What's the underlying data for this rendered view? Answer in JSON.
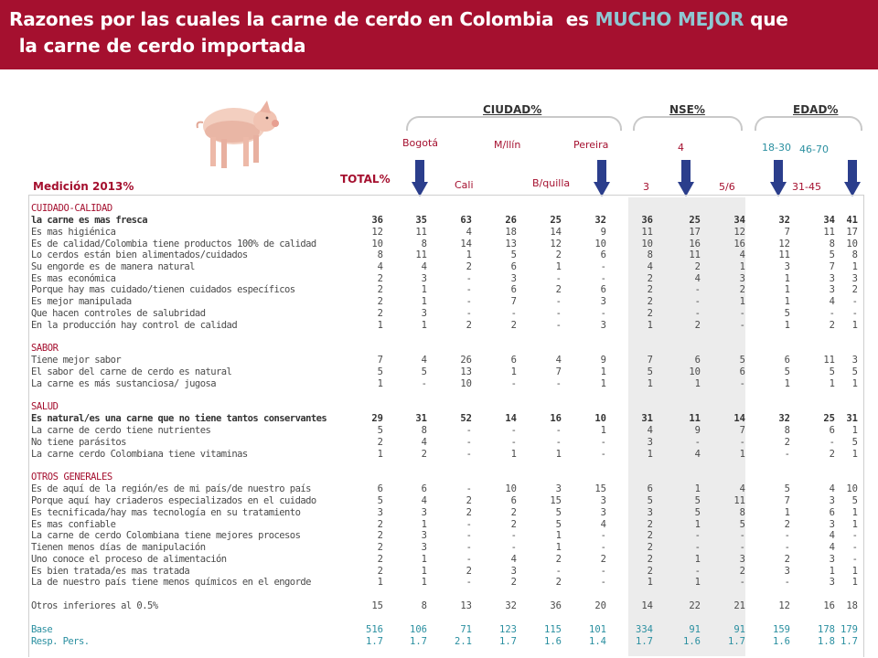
{
  "title": {
    "line1_a": "Razones por las cuales la carne de cerdo en Colombia  es ",
    "line1_hl": "MUCHO MEJOR",
    "line1_b": " que",
    "line2": " la carne de cerdo importada"
  },
  "labels": {
    "medicion": "Medición 2013%",
    "total": "TOTAL%"
  },
  "groups": {
    "ciudad": "CIUDAD%",
    "nse": "NSE%",
    "edad": "EDAD%"
  },
  "subheads": {
    "bogota": "Bogotá",
    "cali": "Cali",
    "medellin": "M/llín",
    "barranquilla": "B/quilla",
    "pereira": "Pereira",
    "nse3": "3",
    "nse4": "4",
    "nse56": "5/6",
    "e1830": "18-30",
    "e3145": "31-45",
    "e4670": "46-70"
  },
  "colors": {
    "brand": "#a5102f",
    "highlight": "#8ec8d3",
    "base_text": "#2a8fa0",
    "nse_shade": "#ececec"
  },
  "icons": {
    "image": "pig-image",
    "arrow": "arrow-down-icon"
  },
  "table": {
    "rows": [
      {
        "label": "CUIDADO-CALIDAD",
        "type": "section",
        "values": []
      },
      {
        "label": "la carne es mas fresca",
        "type": "bold",
        "values": [
          "36",
          "35",
          "63",
          "26",
          "25",
          "32",
          "36",
          "25",
          "34",
          "32",
          "34",
          "41"
        ]
      },
      {
        "label": "Es mas higiénica",
        "type": "item",
        "values": [
          "12",
          "11",
          "4",
          "18",
          "14",
          "9",
          "11",
          "17",
          "12",
          "7",
          "11",
          "17"
        ]
      },
      {
        "label": "Es de calidad/Colombia tiene productos 100% de calidad",
        "type": "item",
        "values": [
          "10",
          "8",
          "14",
          "13",
          "12",
          "10",
          "10",
          "16",
          "16",
          "12",
          "8",
          "10"
        ]
      },
      {
        "label": "Lo cerdos están bien alimentados/cuidados",
        "type": "item",
        "values": [
          "8",
          "11",
          "1",
          "5",
          "2",
          "6",
          "8",
          "11",
          "4",
          "11",
          "5",
          "8"
        ]
      },
      {
        "label": "Su engorde es de manera natural",
        "type": "item",
        "values": [
          "4",
          "4",
          "2",
          "6",
          "1",
          "-",
          "4",
          "2",
          "1",
          "3",
          "7",
          "1"
        ]
      },
      {
        "label": "Es mas económica",
        "type": "item",
        "values": [
          "2",
          "3",
          "-",
          "3",
          "-",
          "-",
          "2",
          "4",
          "3",
          "1",
          "3",
          "3"
        ]
      },
      {
        "label": "Porque hay mas cuidado/tienen cuidados específicos",
        "type": "item",
        "values": [
          "2",
          "1",
          "-",
          "6",
          "2",
          "6",
          "2",
          "-",
          "2",
          "1",
          "3",
          "2"
        ]
      },
      {
        "label": "Es mejor manipulada",
        "type": "item",
        "values": [
          "2",
          "1",
          "-",
          "7",
          "-",
          "3",
          "2",
          "-",
          "1",
          "1",
          "4",
          "-"
        ]
      },
      {
        "label": "Que hacen controles de salubridad",
        "type": "item",
        "values": [
          "2",
          "3",
          "-",
          "-",
          "-",
          "-",
          "2",
          "-",
          "-",
          "5",
          "-",
          "-"
        ]
      },
      {
        "label": "En la producción hay control de calidad",
        "type": "item",
        "values": [
          "1",
          "1",
          "2",
          "2",
          "-",
          "3",
          "1",
          "2",
          "-",
          "1",
          "2",
          "1"
        ]
      },
      {
        "label": "SABOR",
        "type": "section",
        "values": []
      },
      {
        "label": "Tiene mejor sabor",
        "type": "item",
        "values": [
          "7",
          "4",
          "26",
          "6",
          "4",
          "9",
          "7",
          "6",
          "5",
          "6",
          "11",
          "3"
        ]
      },
      {
        "label": "El sabor del carne de cerdo es natural",
        "type": "item",
        "values": [
          "5",
          "5",
          "13",
          "1",
          "7",
          "1",
          "5",
          "10",
          "6",
          "5",
          "5",
          "5"
        ]
      },
      {
        "label": "La carne es más sustanciosa/ jugosa",
        "type": "item",
        "values": [
          "1",
          "-",
          "10",
          "-",
          "-",
          "1",
          "1",
          "1",
          "-",
          "1",
          "1",
          "1"
        ]
      },
      {
        "label": "SALUD",
        "type": "section",
        "values": []
      },
      {
        "label": "Es natural/es una carne que no tiene tantos conservantes",
        "type": "bold",
        "values": [
          "29",
          "31",
          "52",
          "14",
          "16",
          "10",
          "31",
          "11",
          "14",
          "32",
          "25",
          "31"
        ]
      },
      {
        "label": "La carne de cerdo tiene nutrientes",
        "type": "item",
        "values": [
          "5",
          "8",
          "-",
          "-",
          "-",
          "1",
          "4",
          "9",
          "7",
          "8",
          "6",
          "1"
        ]
      },
      {
        "label": "No tiene parásitos",
        "type": "item",
        "values": [
          "2",
          "4",
          "-",
          "-",
          "-",
          "-",
          "3",
          "-",
          "-",
          "2",
          "-",
          "5"
        ]
      },
      {
        "label": "La carne cerdo Colombiana tiene vitaminas",
        "type": "item",
        "values": [
          "1",
          "2",
          "-",
          "1",
          "1",
          "-",
          "1",
          "4",
          "1",
          "-",
          "2",
          "1"
        ]
      },
      {
        "label": "OTROS GENERALES",
        "type": "section",
        "values": []
      },
      {
        "label": "Es de aquí de la región/es de mi país/de nuestro país",
        "type": "item",
        "values": [
          "6",
          "6",
          "-",
          "10",
          "3",
          "15",
          "6",
          "1",
          "4",
          "5",
          "4",
          "10"
        ]
      },
      {
        "label": "Porque aquí hay criaderos especializados en el cuidado",
        "type": "item",
        "values": [
          "5",
          "4",
          "2",
          "6",
          "15",
          "3",
          "5",
          "5",
          "11",
          "7",
          "3",
          "5"
        ]
      },
      {
        "label": "Es tecnificada/hay mas tecnología en su tratamiento",
        "type": "item",
        "values": [
          "3",
          "3",
          "2",
          "2",
          "5",
          "3",
          "3",
          "5",
          "8",
          "1",
          "6",
          "1"
        ]
      },
      {
        "label": "Es mas confiable",
        "type": "item",
        "values": [
          "2",
          "1",
          "-",
          "2",
          "5",
          "4",
          "2",
          "1",
          "5",
          "2",
          "3",
          "1"
        ]
      },
      {
        "label": "La carne de cerdo Colombiana tiene mejores procesos",
        "type": "item",
        "values": [
          "2",
          "3",
          "-",
          "-",
          "1",
          "-",
          "2",
          "-",
          "-",
          "-",
          "4",
          "-"
        ]
      },
      {
        "label": "Tienen menos días de manipulación",
        "type": "item",
        "values": [
          "2",
          "3",
          "-",
          "-",
          "1",
          "-",
          "2",
          "-",
          "-",
          "-",
          "4",
          "-"
        ]
      },
      {
        "label": "Uno conoce el proceso de alimentación",
        "type": "item",
        "values": [
          "2",
          "1",
          "-",
          "4",
          "2",
          "2",
          "2",
          "1",
          "3",
          "2",
          "3",
          "-"
        ]
      },
      {
        "label": "Es bien tratada/es mas tratada",
        "type": "item",
        "values": [
          "2",
          "1",
          "2",
          "3",
          "-",
          "-",
          "2",
          "-",
          "2",
          "3",
          "1",
          "1"
        ]
      },
      {
        "label": "La de nuestro país tiene menos químicos en el engorde",
        "type": "item",
        "values": [
          "1",
          "1",
          "-",
          "2",
          "2",
          "-",
          "1",
          "1",
          "-",
          "-",
          "3",
          "1"
        ]
      },
      {
        "label": "Otros inferiores al 0.5%",
        "type": "item",
        "values": [
          "15",
          "8",
          "13",
          "32",
          "36",
          "20",
          "14",
          "22",
          "21",
          "12",
          "16",
          "18"
        ]
      },
      {
        "label": "Base",
        "type": "base",
        "values": [
          "516",
          "106",
          "71",
          "123",
          "115",
          "101",
          "334",
          "91",
          "91",
          "159",
          "178",
          "179"
        ]
      },
      {
        "label": "Resp. Pers.",
        "type": "base",
        "values": [
          "1.7",
          "1.7",
          "2.1",
          "1.7",
          "1.6",
          "1.4",
          "1.7",
          "1.6",
          "1.7",
          "1.6",
          "1.8",
          "1.7"
        ]
      }
    ]
  }
}
